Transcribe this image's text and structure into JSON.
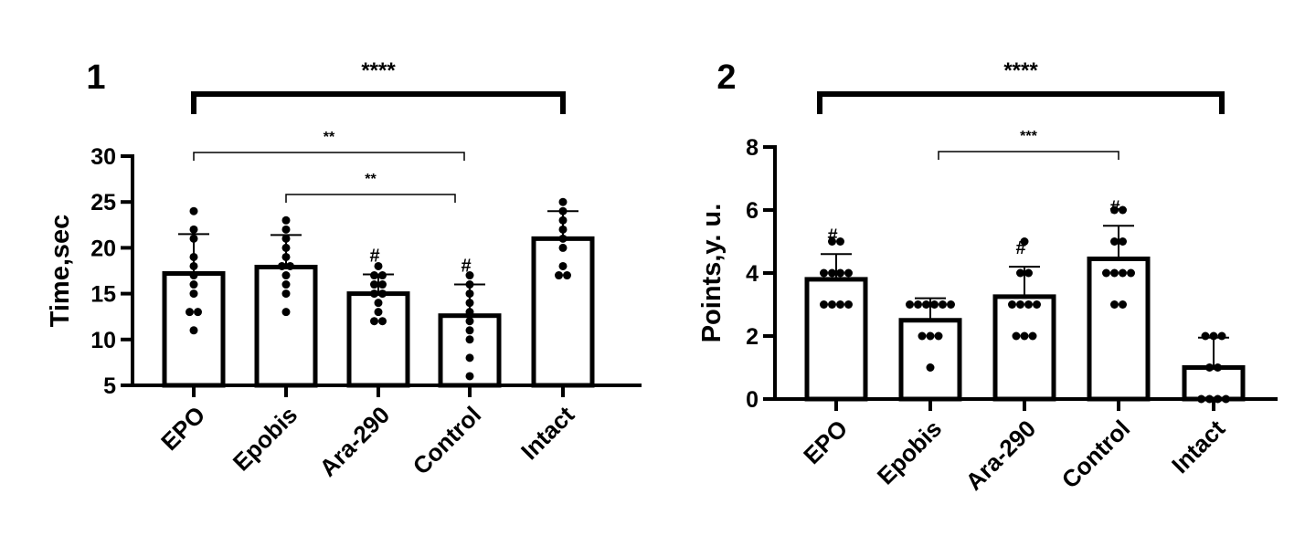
{
  "chart_data": [
    {
      "type": "bar",
      "panel": "1",
      "ylabel": "Time,sec",
      "ylim": [
        5,
        30
      ],
      "yticks": [
        5,
        10,
        15,
        20,
        25,
        30
      ],
      "categories": [
        "EPO",
        "Epobis",
        "Ara-290",
        "Control",
        "Intact"
      ],
      "values": [
        17.2,
        17.9,
        15.0,
        12.6,
        21.0
      ],
      "errors": [
        4.3,
        3.5,
        2.1,
        3.4,
        3.0
      ],
      "markers": [
        "",
        "",
        "#",
        "#",
        ""
      ],
      "points": [
        [
          11,
          13,
          13,
          15,
          16,
          17,
          18,
          19,
          21,
          22,
          24
        ],
        [
          13,
          15,
          16,
          17,
          18,
          18,
          19,
          20,
          21,
          22,
          23
        ],
        [
          12,
          12,
          13,
          14,
          15,
          15,
          16,
          16,
          17,
          17,
          18
        ],
        [
          6,
          8,
          10,
          11,
          12,
          13,
          14,
          15,
          16,
          17
        ],
        [
          17,
          17,
          18,
          20,
          21,
          22,
          23,
          24,
          25
        ]
      ],
      "comparisons": [
        {
          "from": 0,
          "to": 4,
          "label": "****"
        },
        {
          "from": 0,
          "to": 3,
          "label": "**"
        },
        {
          "from": 1,
          "to": 3,
          "label": "**"
        }
      ],
      "grid": false,
      "legend": "none"
    },
    {
      "type": "bar",
      "panel": "2",
      "ylabel": "Points,y. u.",
      "ylim": [
        0,
        8
      ],
      "yticks": [
        0,
        2,
        4,
        6,
        8
      ],
      "categories": [
        "EPO",
        "Epobis",
        "Ara-290",
        "Control",
        "Intact"
      ],
      "values": [
        3.8,
        2.5,
        3.25,
        4.45,
        1.0
      ],
      "errors": [
        0.8,
        0.7,
        0.95,
        1.05,
        0.95
      ],
      "markers": [
        "#",
        "",
        "#",
        "#",
        ""
      ],
      "points": [
        [
          3,
          3,
          3,
          3,
          4,
          4,
          4,
          4,
          5,
          5
        ],
        [
          1,
          2,
          2,
          2,
          3,
          3,
          3,
          3,
          3,
          3
        ],
        [
          2,
          2,
          2,
          3,
          3,
          3,
          3,
          4,
          4,
          5
        ],
        [
          3,
          3,
          4,
          4,
          4,
          4,
          5,
          5,
          6,
          6
        ],
        [
          0,
          0,
          0,
          0,
          1,
          1,
          2,
          2,
          2
        ]
      ],
      "comparisons": [
        {
          "from": 0,
          "to": 4,
          "label": "****"
        },
        {
          "from": 1,
          "to": 3,
          "label": "***"
        }
      ],
      "grid": false,
      "legend": "none"
    }
  ]
}
